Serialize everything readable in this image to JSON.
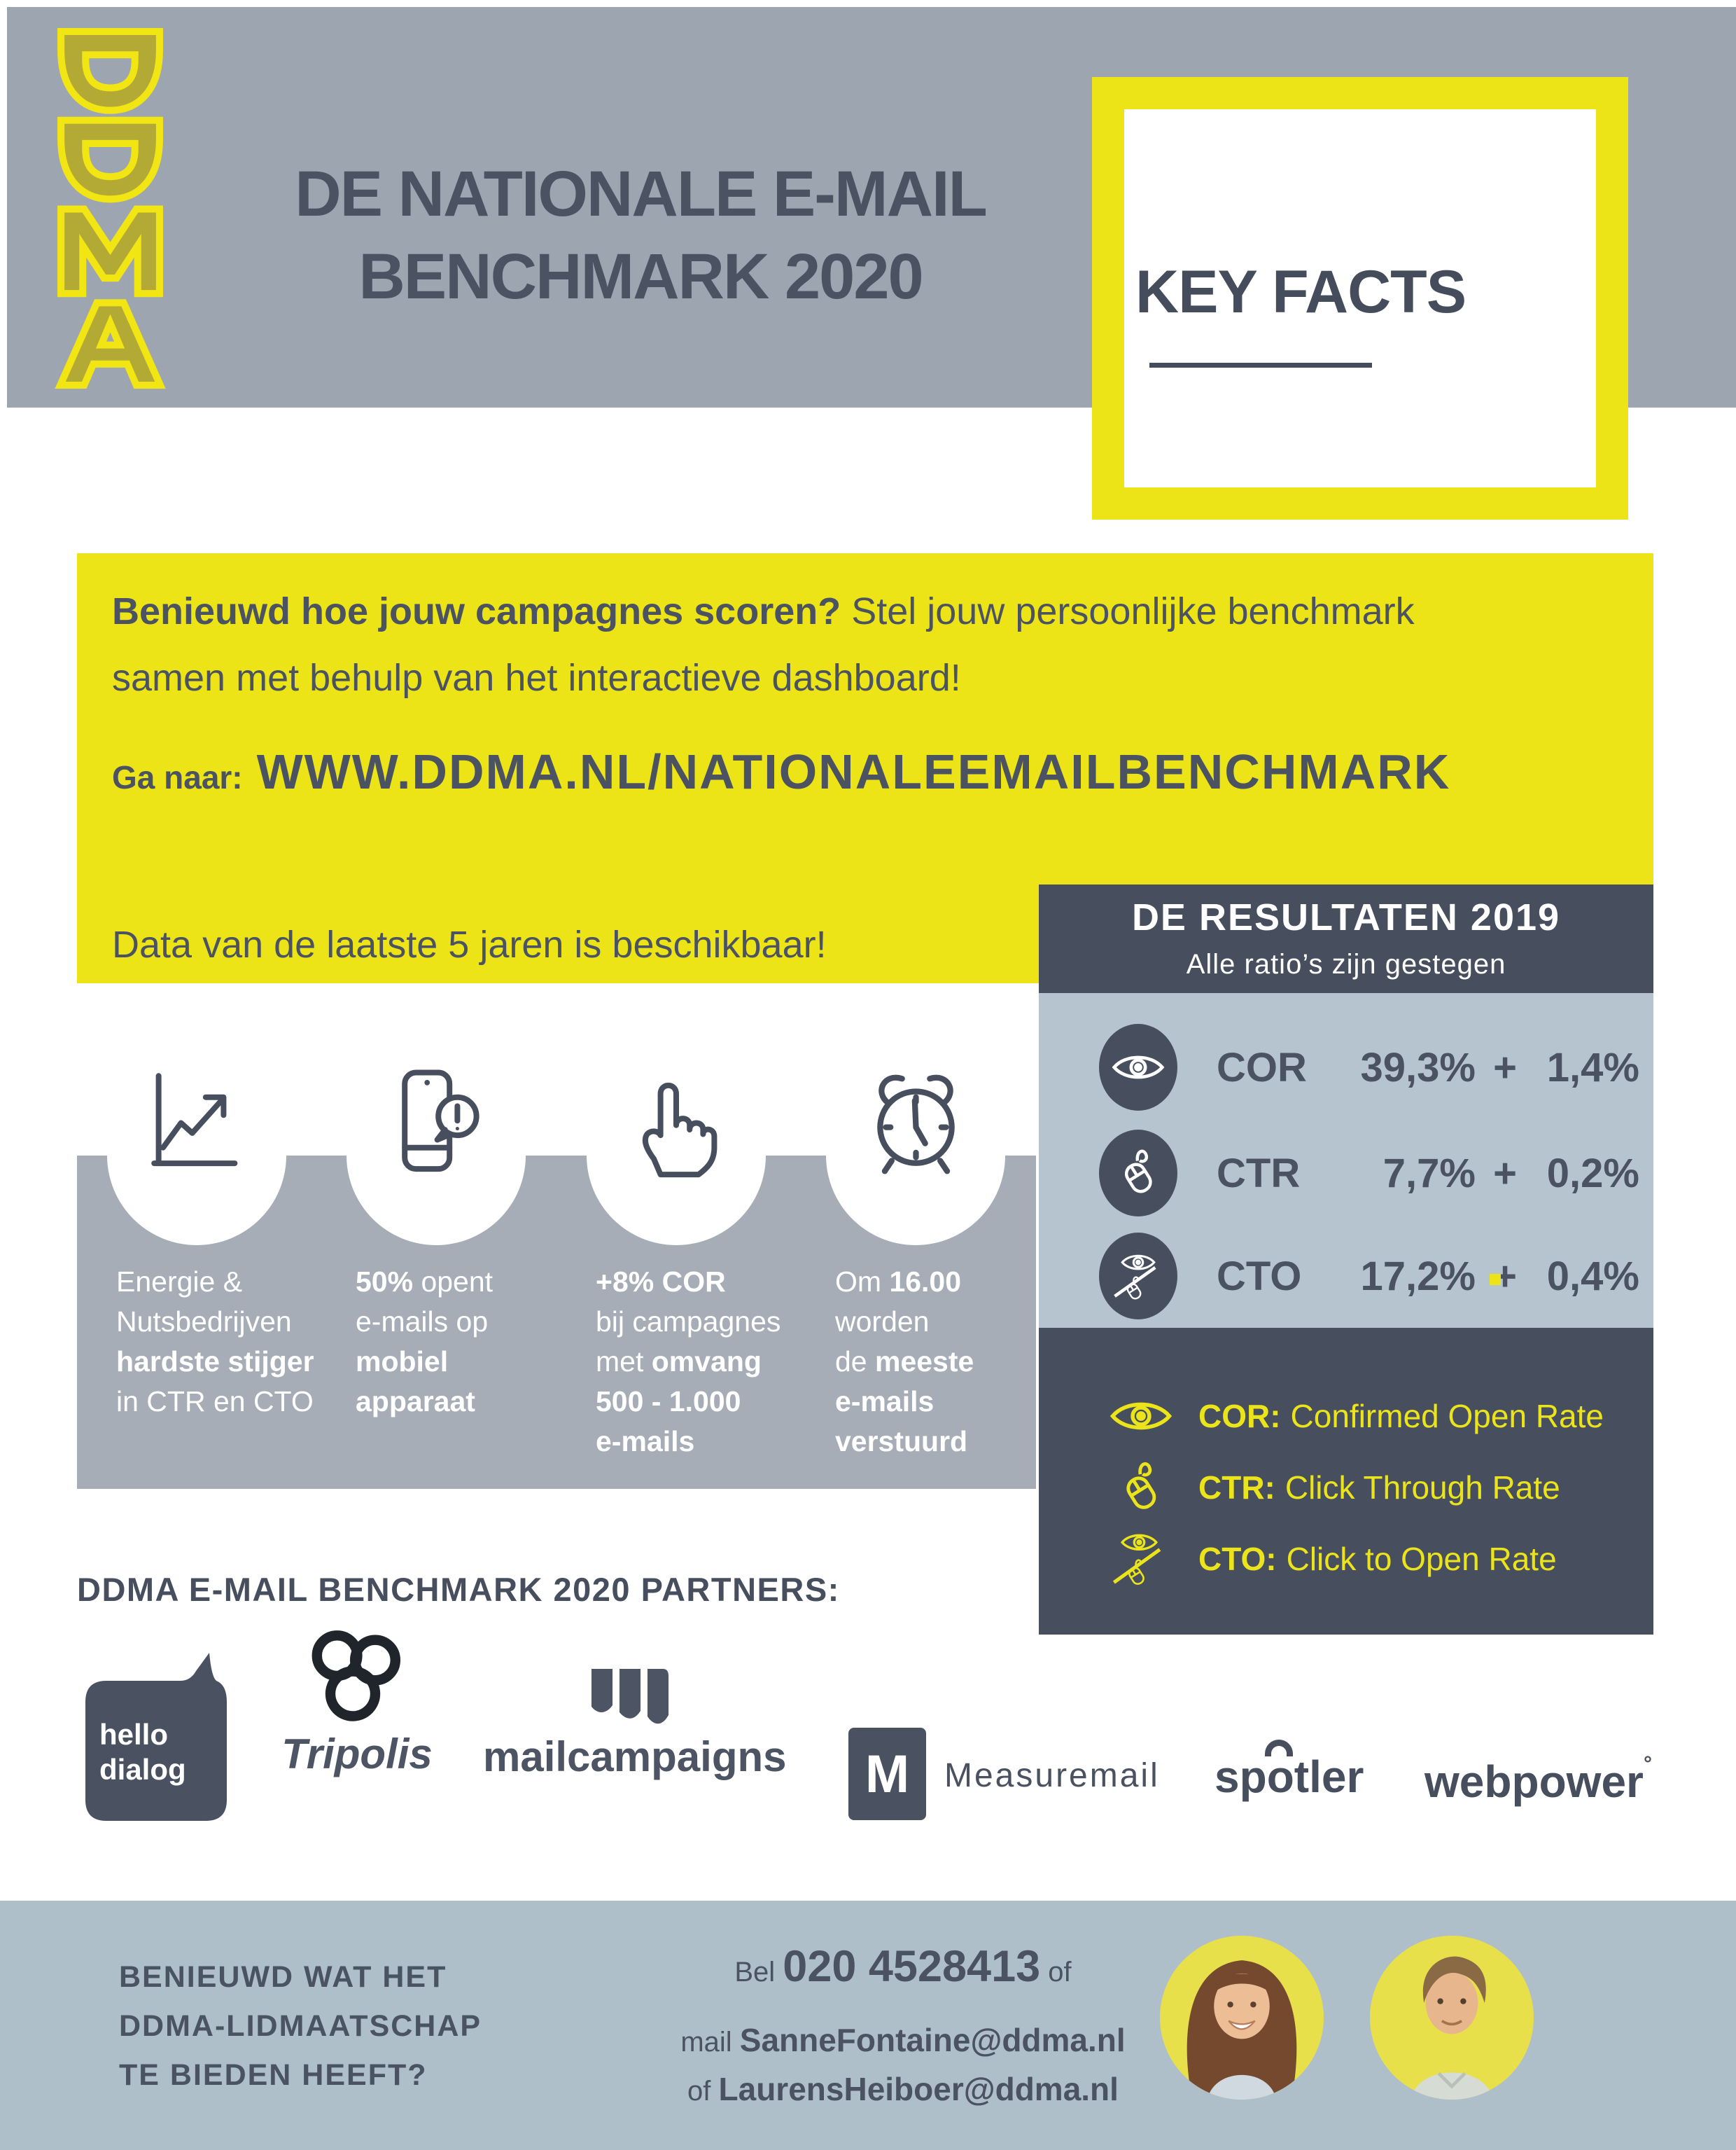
{
  "colors": {
    "yellow": "#ece417",
    "slate": "#474f5e",
    "slate_text": "#4b5362",
    "header_gray": "#9da5b0",
    "band_gray": "#a6adb7",
    "light_blue": "#b6c4d0",
    "footer_blue": "#aebfca",
    "legend_yellow": "#ece41b"
  },
  "logo": {
    "text": "DDMA"
  },
  "header": {
    "title_line1": "DE NATIONALE E-MAIL",
    "title_line2": "BENCHMARK 2020",
    "keyfacts": "KEY FACTS"
  },
  "cta": {
    "l1_bold": "Benieuwd hoe jouw campagnes scoren?",
    "l1_rest": " Stel jouw persoonlijke benchmark",
    "l2": "samen met behulp van het interactieve dashboard!",
    "ga_naar": "Ga naar:",
    "url": "WWW.DDMA.NL/NATIONALEEMAILBENCHMARK",
    "data_note": "Data van de laatste 5 jaren is beschikbaar!"
  },
  "results": {
    "title": "DE RESULTATEN 2019",
    "subtitle": "Alle ratio’s zijn gestegen",
    "rows": [
      {
        "icon": "eye-icon",
        "label": "COR",
        "value": "39,3%",
        "plus": "+",
        "delta": "1,4%"
      },
      {
        "icon": "mouse-icon",
        "label": "CTR",
        "value": "7,7%",
        "plus": "+",
        "delta": "0,2%"
      },
      {
        "icon": "eye-mouse-icon",
        "label": "CTO",
        "value": "17,2%",
        "plus": "+",
        "delta": "0,4%"
      }
    ],
    "legend": [
      {
        "icon": "eye-icon",
        "label": "COR:",
        "text": "Confirmed Open Rate"
      },
      {
        "icon": "mouse-icon",
        "label": "CTR:",
        "text": "Click Through Rate"
      },
      {
        "icon": "eye-mouse-icon",
        "label": "CTO:",
        "text": "Click to Open Rate"
      }
    ]
  },
  "facts": [
    {
      "icon": "chart-icon",
      "lines": [
        [
          {
            "t": "Energie &"
          }
        ],
        [
          {
            "t": "Nutsbedrijven"
          }
        ],
        [
          {
            "t": "hardste stijger",
            "b": true
          }
        ],
        [
          {
            "t": "in CTR en CTO"
          }
        ]
      ]
    },
    {
      "icon": "phone-icon",
      "lines": [
        [
          {
            "t": "50%",
            "b": true
          },
          {
            "t": " opent"
          }
        ],
        [
          {
            "t": "e-mails op"
          }
        ],
        [
          {
            "t": "mobiel",
            "b": true
          }
        ],
        [
          {
            "t": "apparaat",
            "b": true
          }
        ]
      ]
    },
    {
      "icon": "hand-icon",
      "lines": [
        [
          {
            "t": "+8% COR",
            "b": true
          }
        ],
        [
          {
            "t": "bij campagnes"
          }
        ],
        [
          {
            "t": "met "
          },
          {
            "t": "omvang",
            "b": true
          }
        ],
        [
          {
            "t": "500 - 1.000",
            "b": true
          }
        ],
        [
          {
            "t": "e-mails",
            "b": true
          }
        ]
      ]
    },
    {
      "icon": "clock-icon",
      "lines": [
        [
          {
            "t": "Om "
          },
          {
            "t": "16.00",
            "b": true
          }
        ],
        [
          {
            "t": "worden"
          }
        ],
        [
          {
            "t": "de "
          },
          {
            "t": "meeste",
            "b": true
          }
        ],
        [
          {
            "t": "e-mails",
            "b": true
          }
        ],
        [
          {
            "t": "verstuurd",
            "b": true
          }
        ]
      ]
    }
  ],
  "partners": {
    "heading": "DDMA E-MAIL BENCHMARK 2020 PARTNERS:",
    "hellodialog": {
      "line1": "hello",
      "line2": "dialog"
    },
    "tripolis": "Tripolis",
    "mailcampaigns": "mailcampaigns",
    "measuremail": {
      "letter": "M",
      "name": "Measuremail"
    },
    "spotler_pre": "sp",
    "spotler_o": "o",
    "spotler_post": "tler",
    "webpower": "webpower",
    "webpower_mark": "°"
  },
  "footer": {
    "left": [
      "BENIEUWD WAT HET",
      "DDMA-LIDMAATSCHAP",
      "TE BIEDEN HEEFT?"
    ],
    "c1_pre": "Bel ",
    "phone": "020 4528413",
    "c1_post": " of",
    "c2_pre": "mail ",
    "email1": "SanneFontaine@ddma.nl",
    "c3_pre": "of ",
    "email2": "LaurensHeiboer@ddma.nl"
  }
}
